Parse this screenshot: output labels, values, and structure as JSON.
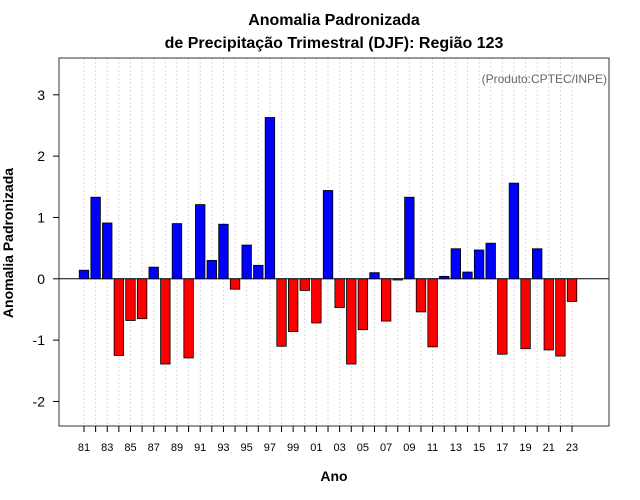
{
  "chart_data": {
    "type": "bar",
    "title": "Anomalia Padronizada",
    "subtitle": "de Precipitação Trimestral (DJF): Região 123",
    "xlabel": "Ano",
    "ylabel": "Anomalia Padronizada",
    "credit": "(Produto:CPTEC/INPE)",
    "ylim": [
      -2.4,
      3.6
    ],
    "yticks": [
      -2,
      -1,
      0,
      1,
      2,
      3
    ],
    "grid": true,
    "colors": {
      "positive": "#0000ff",
      "negative": "#ff0000",
      "grid": "#d9d9d9",
      "frame": "#333333"
    },
    "categories": [
      "81",
      "82",
      "83",
      "84",
      "85",
      "86",
      "87",
      "88",
      "89",
      "90",
      "91",
      "92",
      "93",
      "94",
      "95",
      "96",
      "97",
      "98",
      "99",
      "00",
      "01",
      "02",
      "03",
      "04",
      "05",
      "06",
      "07",
      "08",
      "09",
      "10",
      "11",
      "12",
      "13",
      "14",
      "15",
      "16",
      "17",
      "18",
      "19",
      "20",
      "21",
      "22",
      "23"
    ],
    "tick_labels": [
      "81",
      "83",
      "85",
      "87",
      "89",
      "91",
      "93",
      "95",
      "97",
      "99",
      "01",
      "03",
      "05",
      "07",
      "09",
      "11",
      "13",
      "15",
      "17",
      "19",
      "21",
      "23"
    ],
    "values": [
      0.14,
      1.33,
      0.91,
      -1.25,
      -0.68,
      -0.65,
      0.19,
      -1.39,
      0.9,
      -1.29,
      1.21,
      0.3,
      0.89,
      -0.17,
      0.55,
      0.22,
      2.63,
      -1.1,
      -0.86,
      -0.19,
      -0.72,
      1.44,
      -0.47,
      -1.39,
      -0.83,
      0.1,
      -0.69,
      -0.02,
      1.33,
      -0.54,
      -1.11,
      0.04,
      0.49,
      0.11,
      0.47,
      0.58,
      -1.23,
      1.56,
      -1.14,
      0.49,
      -1.16,
      -1.26,
      -0.37
    ]
  }
}
